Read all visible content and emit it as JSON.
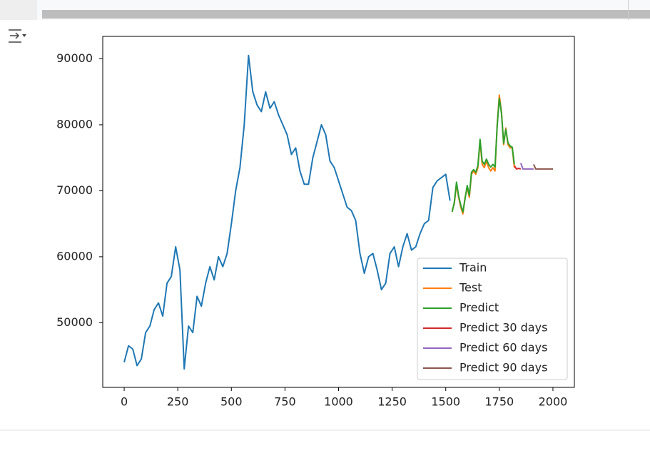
{
  "chart_data": {
    "type": "line",
    "xlim": [
      -100,
      2100
    ],
    "ylim": [
      40200,
      93400
    ],
    "xticks": [
      0,
      250,
      500,
      750,
      1000,
      1250,
      1500,
      1750,
      2000
    ],
    "yticks": [
      50000,
      60000,
      70000,
      80000,
      90000
    ],
    "grid": false,
    "legend": "lower right",
    "series": [
      {
        "name": "Train",
        "color": "#1f77b4",
        "x": [
          0,
          20,
          40,
          60,
          80,
          100,
          120,
          140,
          160,
          180,
          200,
          220,
          240,
          260,
          280,
          300,
          320,
          340,
          360,
          380,
          400,
          420,
          440,
          460,
          480,
          500,
          520,
          540,
          560,
          580,
          600,
          620,
          640,
          660,
          680,
          700,
          720,
          740,
          760,
          780,
          800,
          820,
          840,
          860,
          880,
          900,
          920,
          940,
          960,
          980,
          1000,
          1020,
          1040,
          1060,
          1080,
          1100,
          1120,
          1140,
          1160,
          1180,
          1200,
          1220,
          1240,
          1260,
          1280,
          1300,
          1320,
          1340,
          1360,
          1380,
          1400,
          1420,
          1440,
          1460,
          1480,
          1500,
          1520
        ],
        "values": [
          44000,
          46500,
          46000,
          43500,
          44500,
          48500,
          49500,
          52000,
          53000,
          51000,
          56000,
          57000,
          61500,
          58000,
          43000,
          49500,
          48500,
          54000,
          52500,
          56000,
          58500,
          56500,
          60000,
          58500,
          60500,
          65000,
          70000,
          73500,
          80000,
          90500,
          85000,
          83000,
          82000,
          85000,
          82500,
          83500,
          81500,
          80000,
          78500,
          75500,
          76500,
          73000,
          71000,
          71000,
          75000,
          77500,
          80000,
          78500,
          74500,
          73500,
          71500,
          69500,
          67500,
          67000,
          65500,
          60500,
          57500,
          60000,
          60500,
          58000,
          55000,
          56000,
          60500,
          61500,
          58500,
          61500,
          63500,
          61000,
          61500,
          63500,
          65000,
          65500,
          70500,
          71500,
          72000,
          72500,
          68500
        ]
      },
      {
        "name": "Test",
        "color": "#ff7f0e",
        "x": [
          1530,
          1540,
          1550,
          1560,
          1570,
          1580,
          1590,
          1600,
          1610,
          1620,
          1630,
          1640,
          1650,
          1660,
          1670,
          1680,
          1690,
          1700,
          1710,
          1720,
          1730,
          1740,
          1750,
          1760,
          1770,
          1780,
          1790,
          1800,
          1810,
          1820
        ],
        "values": [
          67000,
          68000,
          71000,
          69000,
          67500,
          66500,
          69000,
          70500,
          69000,
          72500,
          73000,
          72500,
          73500,
          77500,
          74000,
          73500,
          74500,
          73500,
          73000,
          73500,
          73000,
          80000,
          84500,
          82000,
          77000,
          79500,
          77000,
          76500,
          76500,
          73500
        ]
      },
      {
        "name": "Predict",
        "color": "#2ca02c",
        "x": [
          1530,
          1540,
          1550,
          1560,
          1570,
          1580,
          1590,
          1600,
          1610,
          1620,
          1630,
          1640,
          1650,
          1660,
          1670,
          1680,
          1690,
          1700,
          1710,
          1720,
          1730,
          1740,
          1750,
          1760,
          1770,
          1780,
          1790,
          1800,
          1810,
          1820
        ],
        "values": [
          66800,
          68200,
          71300,
          69200,
          67800,
          66800,
          68800,
          70800,
          69300,
          72800,
          73200,
          72800,
          73800,
          77800,
          74500,
          74000,
          74800,
          74000,
          73600,
          74000,
          73600,
          79800,
          84000,
          81800,
          77200,
          79300,
          77300,
          76800,
          76600,
          74000
        ]
      },
      {
        "name": "Predict 30 days",
        "color": "#d62728",
        "x": [
          1820,
          1830,
          1840,
          1850
        ],
        "values": [
          73800,
          73300,
          73400,
          73300
        ]
      },
      {
        "name": "Predict 60 days",
        "color": "#9467bd",
        "x": [
          1850,
          1860,
          1880,
          1900,
          1910
        ],
        "values": [
          74200,
          73300,
          73300,
          73300,
          73300
        ]
      },
      {
        "name": "Predict 90 days",
        "color": "#8c564b",
        "x": [
          1910,
          1920,
          1950,
          2000
        ],
        "values": [
          74000,
          73300,
          73300,
          73300
        ]
      }
    ]
  }
}
